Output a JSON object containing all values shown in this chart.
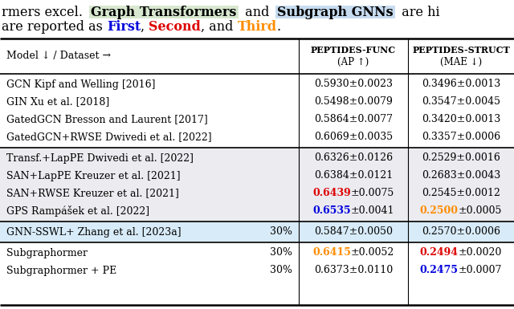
{
  "fig_w": 6.4,
  "fig_h": 3.85,
  "dpi": 100,
  "caption1_parts": [
    {
      "text": "rmers excel.  ",
      "color": "#000000",
      "bold": false,
      "bg": null
    },
    {
      "text": "Graph Transformers",
      "color": "#000000",
      "bold": true,
      "bg": "#D8E8D0"
    },
    {
      "text": "  and  ",
      "color": "#000000",
      "bold": false,
      "bg": null
    },
    {
      "text": "Subgraph GNNs",
      "color": "#000000",
      "bold": true,
      "bg": "#C8DCF0"
    },
    {
      "text": "  are hi",
      "color": "#000000",
      "bold": false,
      "bg": null
    }
  ],
  "caption2_parts": [
    {
      "text": "are reported as ",
      "color": "#000000",
      "bold": false
    },
    {
      "text": "First",
      "color": "#0000DD",
      "bold": true
    },
    {
      "text": ", ",
      "color": "#000000",
      "bold": false
    },
    {
      "text": "Second",
      "color": "#DD0000",
      "bold": true
    },
    {
      "text": ", and ",
      "color": "#000000",
      "bold": false
    },
    {
      "text": "Third",
      "color": "#FF8C00",
      "bold": true
    },
    {
      "text": ".",
      "color": "#000000",
      "bold": false
    }
  ],
  "header": {
    "col0": "Model ↓ / Dataset →",
    "col1_line1": "Peptides-Func",
    "col1_line2": "(AP ↑)",
    "col2_line1": "Peptides-Struct",
    "col2_line2": "(MAE ↓)"
  },
  "col1_sep": 0.575,
  "col2_sep": 0.76,
  "groups": [
    {
      "rows": [
        {
          "model": "GCN Kipf and Welling [2016]",
          "pct": null,
          "c1": [
            {
              "t": "0.5930±0.0023",
              "c": "#000000",
              "b": false
            }
          ],
          "c2": [
            {
              "t": "0.3496±0.0013",
              "c": "#000000",
              "b": false
            }
          ]
        },
        {
          "model": "GIN Xu et al. [2018]",
          "pct": null,
          "c1": [
            {
              "t": "0.5498±0.0079",
              "c": "#000000",
              "b": false
            }
          ],
          "c2": [
            {
              "t": "0.3547±0.0045",
              "c": "#000000",
              "b": false
            }
          ]
        },
        {
          "model": "GatedGCN Bresson and Laurent [2017]",
          "pct": null,
          "c1": [
            {
              "t": "0.5864±0.0077",
              "c": "#000000",
              "b": false
            }
          ],
          "c2": [
            {
              "t": "0.3420±0.0013",
              "c": "#000000",
              "b": false
            }
          ]
        },
        {
          "model": "GatedGCN+RWSE Dwivedi et al. [2022]",
          "pct": null,
          "c1": [
            {
              "t": "0.6069±0.0035",
              "c": "#000000",
              "b": false
            }
          ],
          "c2": [
            {
              "t": "0.3357±0.0006",
              "c": "#000000",
              "b": false
            }
          ]
        }
      ],
      "bg": "#FFFFFF"
    },
    {
      "rows": [
        {
          "model": "Transf.+LapPE Dwivedi et al. [2022]",
          "pct": null,
          "c1": [
            {
              "t": "0.6326±0.0126",
              "c": "#000000",
              "b": false
            }
          ],
          "c2": [
            {
              "t": "0.2529±0.0016",
              "c": "#000000",
              "b": false
            }
          ]
        },
        {
          "model": "SAN+LapPE Kreuzer et al. [2021]",
          "pct": null,
          "c1": [
            {
              "t": "0.6384±0.0121",
              "c": "#000000",
              "b": false
            }
          ],
          "c2": [
            {
              "t": "0.2683±0.0043",
              "c": "#000000",
              "b": false
            }
          ]
        },
        {
          "model": "SAN+RWSE Kreuzer et al. [2021]",
          "pct": null,
          "c1": [
            {
              "t": "0.6439",
              "c": "#DD0000",
              "b": true
            },
            {
              "t": "±0.0075",
              "c": "#000000",
              "b": false
            }
          ],
          "c2": [
            {
              "t": "0.2545±0.0012",
              "c": "#000000",
              "b": false
            }
          ]
        },
        {
          "model": "GPS Rampášek et al. [2022]",
          "pct": null,
          "c1": [
            {
              "t": "0.6535",
              "c": "#0000DD",
              "b": true
            },
            {
              "t": "±0.0041",
              "c": "#000000",
              "b": false
            }
          ],
          "c2": [
            {
              "t": "0.2500",
              "c": "#FF8C00",
              "b": true
            },
            {
              "t": "±0.0005",
              "c": "#000000",
              "b": false
            }
          ]
        }
      ],
      "bg": "#EBEBF0"
    },
    {
      "rows": [
        {
          "model": "GNN-SSWL+ Zhang et al. [2023a]",
          "pct": "30%",
          "c1": [
            {
              "t": "0.5847±0.0050",
              "c": "#000000",
              "b": false
            }
          ],
          "c2": [
            {
              "t": "0.2570±0.0006",
              "c": "#000000",
              "b": false
            }
          ]
        }
      ],
      "bg": "#D8EBF8"
    },
    {
      "rows": [
        {
          "model": "Subgraphormer",
          "pct": "30%",
          "c1": [
            {
              "t": "0.6415",
              "c": "#FF8C00",
              "b": true
            },
            {
              "t": "±0.0052",
              "c": "#000000",
              "b": false
            }
          ],
          "c2": [
            {
              "t": "0.2494",
              "c": "#DD0000",
              "b": true
            },
            {
              "t": "±0.0020",
              "c": "#000000",
              "b": false
            }
          ]
        },
        {
          "model": "Subgraphormer + PE",
          "pct": "30%",
          "c1": [
            {
              "t": "0.6373±0.0110",
              "c": "#000000",
              "b": false
            }
          ],
          "c2": [
            {
              "t": "0.2475",
              "c": "#0000DD",
              "b": true
            },
            {
              "t": "±0.0007",
              "c": "#000000",
              "b": false
            }
          ]
        }
      ],
      "bg": "#FFFFFF"
    }
  ]
}
